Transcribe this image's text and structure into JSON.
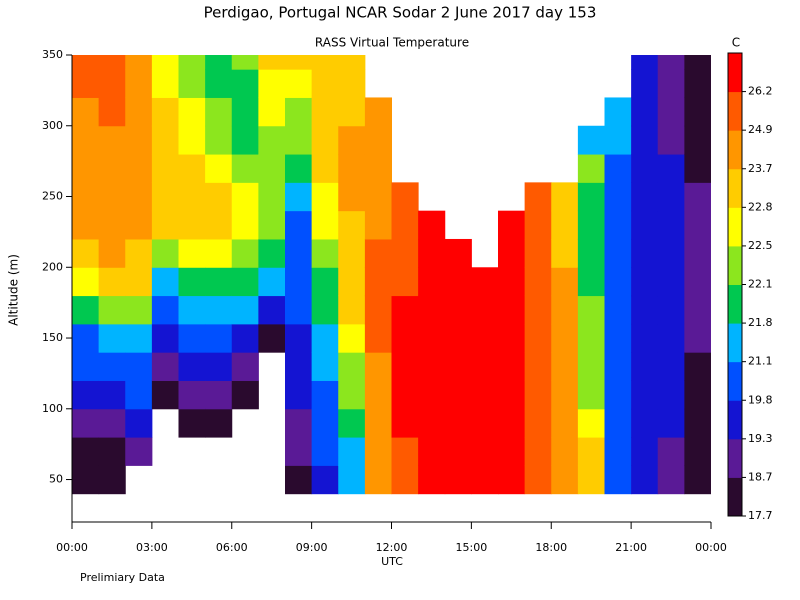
{
  "chart_data": {
    "type": "contour",
    "title": "Perdigao, Portugal  NCAR Sodar   2 June 2017  day 153",
    "subtitle": "RASS Virtual Temperature",
    "xlabel": "UTC",
    "ylabel": "Altitude (m)",
    "note": "Prelimiary Data",
    "xlim": [
      0,
      24
    ],
    "ylim": [
      20,
      350
    ],
    "xticks": [
      {
        "value": 0,
        "label": "00:00"
      },
      {
        "value": 3,
        "label": "03:00"
      },
      {
        "value": 6,
        "label": "06:00"
      },
      {
        "value": 9,
        "label": "09:00"
      },
      {
        "value": 12,
        "label": "12:00"
      },
      {
        "value": 15,
        "label": "15:00"
      },
      {
        "value": 18,
        "label": "18:00"
      },
      {
        "value": 21,
        "label": "21:00"
      },
      {
        "value": 24,
        "label": "00:00"
      }
    ],
    "yticks": [
      50,
      100,
      150,
      200,
      250,
      300,
      350
    ],
    "x_edges": [
      0,
      1,
      2,
      3,
      4,
      5,
      6,
      7,
      8,
      9,
      10,
      11,
      12,
      13,
      14,
      15,
      16,
      17,
      18,
      19,
      20,
      21,
      22,
      23,
      24
    ],
    "y_edges": [
      40,
      60,
      80,
      100,
      120,
      140,
      160,
      180,
      200,
      220,
      240,
      260,
      280,
      300,
      320,
      340,
      360
    ],
    "values": [
      [
        18,
        18,
        18.9,
        19.5,
        19.9,
        20.5,
        21.9,
        22.6,
        23,
        23.8,
        23.8,
        24,
        24.5,
        24.5,
        25,
        25
      ],
      [
        18,
        18.5,
        19,
        19.4,
        19.9,
        21.2,
        22.2,
        22.9,
        23.8,
        23.8,
        24,
        24,
        24.5,
        25,
        25,
        25
      ],
      [
        null,
        18.9,
        19.4,
        19.9,
        20.5,
        21.3,
        22.3,
        22.9,
        23,
        23.8,
        23.8,
        23.8,
        24,
        24,
        23.8,
        24
      ],
      [
        null,
        null,
        null,
        18,
        19,
        19.5,
        20.5,
        21.5,
        22.2,
        22.9,
        22.9,
        23,
        23,
        22.9,
        22.6,
        22.6
      ],
      [
        null,
        null,
        18,
        18.8,
        19.5,
        20.5,
        21.3,
        21.9,
        22.6,
        22.9,
        22.9,
        22.9,
        22.6,
        22.6,
        22.2,
        22.2
      ],
      [
        null,
        null,
        18,
        18.8,
        19.5,
        20,
        21.3,
        22,
        22.6,
        22.9,
        22.9,
        22.6,
        22.2,
        22.2,
        22,
        21.9
      ],
      [
        null,
        null,
        null,
        18,
        18.8,
        19.5,
        21.2,
        21.9,
        22.2,
        22.6,
        22.6,
        22.2,
        21.9,
        21.9,
        22,
        22.2
      ],
      [
        null,
        null,
        null,
        null,
        null,
        18,
        19.5,
        21.2,
        21.9,
        22.1,
        22.2,
        22.3,
        22.3,
        22.6,
        22.6,
        22.9
      ],
      [
        18,
        18.8,
        19,
        19.4,
        19.5,
        19.5,
        19.8,
        19.9,
        20,
        20.5,
        21.2,
        21.9,
        22.2,
        22.3,
        22.6,
        22.9
      ],
      [
        19.5,
        19.9,
        20,
        20.5,
        21.2,
        21.3,
        21.9,
        22,
        22.3,
        22.6,
        22.6,
        22.9,
        22.9,
        23,
        22.9,
        23
      ],
      [
        21.2,
        21.5,
        21.9,
        22.1,
        22.3,
        22.6,
        22.9,
        22.9,
        23,
        23.5,
        23.8,
        23.8,
        24,
        23,
        22.9,
        22.9
      ],
      [
        23.8,
        24,
        24,
        24.3,
        24.5,
        25,
        25,
        25,
        25,
        24.5,
        24.5,
        24,
        24,
        24,
        null,
        null
      ],
      [
        25.5,
        26,
        26.3,
        26.3,
        26.3,
        26.3,
        26.3,
        26,
        26,
        25,
        25,
        null,
        null,
        null,
        null,
        null
      ],
      [
        26.5,
        26.5,
        26.5,
        26.5,
        26.5,
        26.5,
        26.5,
        26.5,
        26.5,
        26.3,
        null,
        null,
        null,
        null,
        null,
        null
      ],
      [
        26.5,
        26.5,
        26.5,
        26.5,
        26.5,
        26.5,
        26.5,
        26.5,
        26.5,
        null,
        null,
        null,
        null,
        null,
        null,
        null
      ],
      [
        26.5,
        26.5,
        26.5,
        26.5,
        26.5,
        26.5,
        26.5,
        26.5,
        null,
        null,
        null,
        null,
        null,
        null,
        null,
        null
      ],
      [
        26.5,
        26.5,
        26.5,
        26.5,
        26.5,
        26.5,
        26.5,
        26.5,
        26.5,
        26.3,
        null,
        null,
        null,
        null,
        null,
        null
      ],
      [
        25,
        25,
        25.5,
        26,
        26,
        26,
        26,
        26,
        26,
        25,
        25,
        null,
        null,
        null,
        null,
        null
      ],
      [
        24,
        24,
        24,
        24,
        23.8,
        23.8,
        23.8,
        23.8,
        23.5,
        23,
        23,
        null,
        null,
        null,
        null,
        null
      ],
      [
        23,
        22.9,
        22.6,
        22.3,
        22.2,
        22.1,
        22.1,
        22,
        21.9,
        21.9,
        21.9,
        22.1,
        21.5,
        null,
        null,
        null
      ],
      [
        20,
        20,
        20,
        20,
        20,
        20,
        20,
        20,
        20,
        20,
        20,
        20,
        21.2,
        21.2,
        null,
        null
      ],
      [
        19.5,
        19.5,
        19.5,
        19.5,
        19.5,
        19.5,
        19.5,
        19.5,
        19.5,
        19.5,
        19.5,
        19.5,
        19.5,
        19.5,
        19.5,
        19.5
      ],
      [
        18.8,
        19,
        19.3,
        19.4,
        19.4,
        19.5,
        19.5,
        19.5,
        19.5,
        19.4,
        19.4,
        19.3,
        19,
        18.9,
        18.8,
        18.8
      ],
      [
        18,
        18,
        18,
        18,
        18.5,
        18.8,
        18.8,
        18.8,
        19,
        19,
        18.8,
        18.5,
        18,
        18,
        18,
        18
      ]
    ],
    "colorbar": {
      "label": "C",
      "levels": [
        17.7,
        18.7,
        19.3,
        19.8,
        21.1,
        21.8,
        22.1,
        22.5,
        22.8,
        23.7,
        24.9,
        26.2
      ],
      "colors": [
        "#2a0a2e",
        "#5a1a96",
        "#1414d2",
        "#0050ff",
        "#00b4ff",
        "#00c850",
        "#8ce61e",
        "#ffff00",
        "#ffcc00",
        "#ff9600",
        "#ff5a00",
        "#ff0000"
      ]
    }
  }
}
